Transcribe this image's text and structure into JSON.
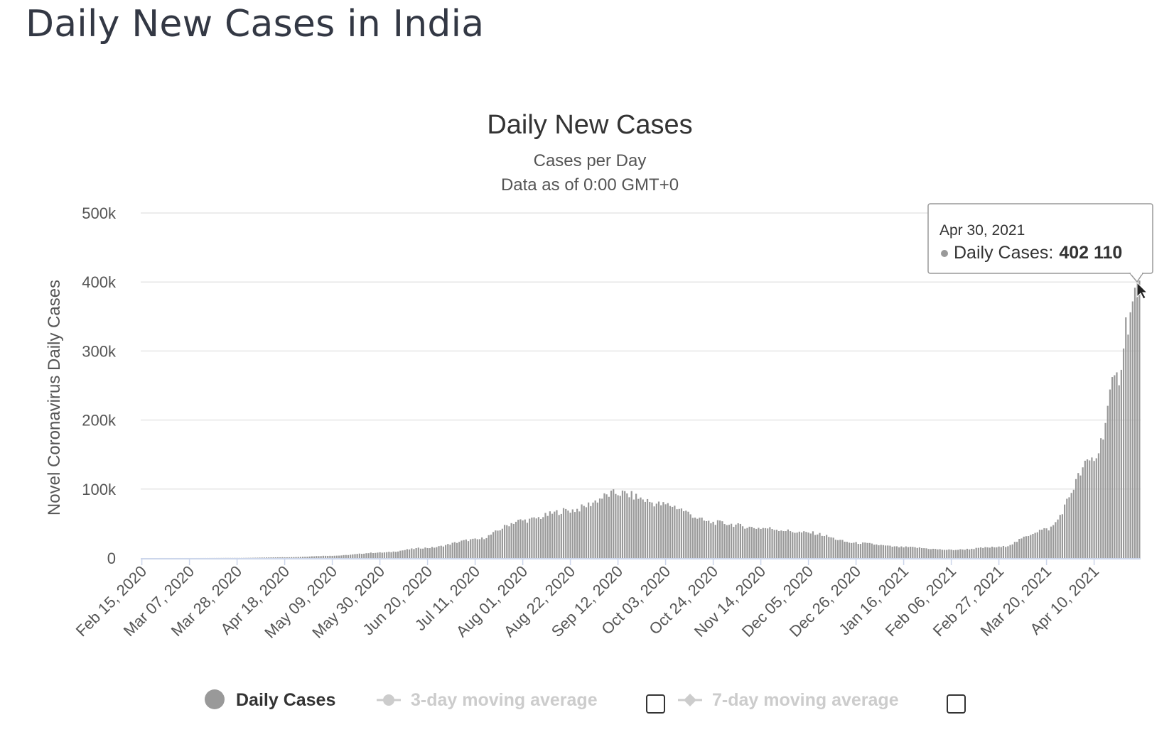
{
  "page": {
    "title": "Daily New Cases in India"
  },
  "chart_data": {
    "type": "bar",
    "title": "Daily New Cases",
    "subtitle": "Cases per Day",
    "subtitle2": "Data as of 0:00 GMT+0",
    "ylabel": "Novel Coronavirus Daily Cases",
    "ylim": [
      0,
      500000
    ],
    "y_ticks": [
      0,
      100000,
      200000,
      300000,
      400000,
      500000
    ],
    "y_tick_labels": [
      "0",
      "100k",
      "200k",
      "300k",
      "400k",
      "500k"
    ],
    "x_start": "2020-02-15",
    "x_end": "2021-04-30",
    "x_tick_labels": [
      "Feb 15, 2020",
      "Mar 07, 2020",
      "Mar 28, 2020",
      "Apr 18, 2020",
      "May 09, 2020",
      "May 30, 2020",
      "Jun 20, 2020",
      "Jul 11, 2020",
      "Aug 01, 2020",
      "Aug 22, 2020",
      "Sep 12, 2020",
      "Oct 03, 2020",
      "Oct 24, 2020",
      "Nov 14, 2020",
      "Dec 05, 2020",
      "Dec 26, 2020",
      "Jan 16, 2021",
      "Feb 06, 2021",
      "Feb 27, 2021",
      "Mar 20, 2021",
      "Apr 10, 2021"
    ],
    "grid": true,
    "series": [
      {
        "name": "Daily Cases",
        "color": "#999999",
        "values_by_date": [
          [
            "2020-02-15",
            0
          ],
          [
            "2020-03-07",
            20
          ],
          [
            "2020-03-28",
            200
          ],
          [
            "2020-04-18",
            1200
          ],
          [
            "2020-05-09",
            3400
          ],
          [
            "2020-05-30",
            8000
          ],
          [
            "2020-06-20",
            15000
          ],
          [
            "2020-07-11",
            27000
          ],
          [
            "2020-08-01",
            55000
          ],
          [
            "2020-08-22",
            70000
          ],
          [
            "2020-09-12",
            95000
          ],
          [
            "2020-10-03",
            78000
          ],
          [
            "2020-10-24",
            52000
          ],
          [
            "2020-11-14",
            44000
          ],
          [
            "2020-12-05",
            37000
          ],
          [
            "2020-12-26",
            22000
          ],
          [
            "2021-01-16",
            16000
          ],
          [
            "2021-02-06",
            12000
          ],
          [
            "2021-02-27",
            16000
          ],
          [
            "2021-03-20",
            42000
          ],
          [
            "2021-04-10",
            145000
          ],
          [
            "2021-04-20",
            260000
          ],
          [
            "2021-04-25",
            350000
          ],
          [
            "2021-04-30",
            402110
          ]
        ]
      }
    ],
    "legend": {
      "position": "bottom",
      "items": [
        {
          "label": "Daily Cases",
          "enabled": true
        },
        {
          "label": "3-day moving average",
          "enabled": false
        },
        {
          "label": "7-day moving average",
          "enabled": false
        }
      ]
    },
    "tooltip": {
      "date": "Apr 30, 2021",
      "series": "Daily Cases:",
      "value": "402 110"
    }
  },
  "colors": {
    "bar": "#999999",
    "grid": "#e6e6e6",
    "axis": "#ccd6eb",
    "legend_active": "#333333",
    "legend_inactive": "#cccccc"
  }
}
